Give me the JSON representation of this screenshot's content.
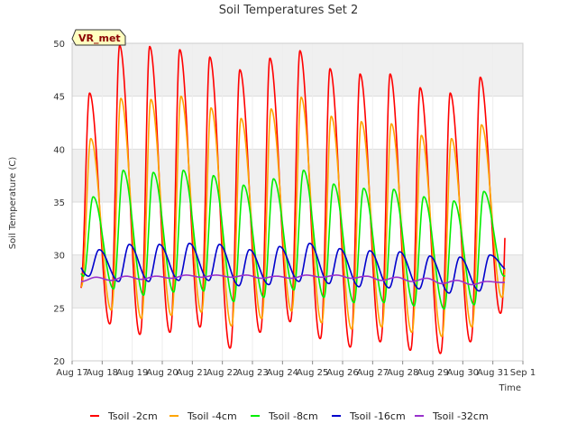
{
  "chart_data": {
    "type": "line",
    "title": "Soil Temperatures Set 2",
    "xlabel": "Time",
    "ylabel": "Soil Temperature (C)",
    "badge": "VR_met",
    "ylim": [
      20,
      50
    ],
    "yticks": [
      20,
      25,
      30,
      35,
      40,
      45,
      50
    ],
    "xlim": [
      "2023-08-17",
      "2023-09-01"
    ],
    "xticks": [
      "Aug 17",
      "Aug 18",
      "Aug 19",
      "Aug 20",
      "Aug 21",
      "Aug 22",
      "Aug 23",
      "Aug 24",
      "Aug 25",
      "Aug 26",
      "Aug 27",
      "Aug 28",
      "Aug 29",
      "Aug 30",
      "Aug 31",
      "Sep 1"
    ],
    "grid": true,
    "legend_position": "bottom",
    "daily_extremes_note_values": "daily min/max per day Aug 17 .. Aug 31",
    "series": [
      {
        "name": "Tsoil -2cm",
        "color": "#ff0000",
        "daily_min": [
          26.5,
          23.5,
          22.5,
          22.7,
          23.2,
          21.2,
          22.7,
          23.7,
          22.1,
          21.3,
          21.8,
          21.0,
          20.7,
          21.8,
          24.5
        ],
        "daily_max": [
          45.3,
          49.8,
          49.7,
          49.4,
          48.7,
          47.5,
          48.6,
          49.3,
          47.6,
          47.1,
          47.1,
          45.8,
          45.3,
          46.8,
          null
        ]
      },
      {
        "name": "Tsoil -4cm",
        "color": "#ffa500",
        "daily_min": [
          27.0,
          24.8,
          24.0,
          24.3,
          24.6,
          23.3,
          24.0,
          24.7,
          23.6,
          23.0,
          23.2,
          22.7,
          22.3,
          23.2,
          26.0
        ],
        "daily_max": [
          41.0,
          44.8,
          44.7,
          45.0,
          43.9,
          42.9,
          43.8,
          44.9,
          43.1,
          42.6,
          42.4,
          41.3,
          41.0,
          42.3,
          null
        ]
      },
      {
        "name": "Tsoil -8cm",
        "color": "#00ee00",
        "daily_min": [
          28.0,
          26.8,
          26.2,
          26.5,
          26.6,
          25.6,
          26.0,
          26.7,
          26.0,
          25.5,
          25.5,
          25.2,
          24.9,
          25.3,
          28.0
        ],
        "daily_max": [
          35.5,
          38.0,
          37.8,
          38.0,
          37.5,
          36.6,
          37.2,
          38.0,
          36.7,
          36.3,
          36.2,
          35.5,
          35.1,
          36.0,
          null
        ]
      },
      {
        "name": "Tsoil -16cm",
        "color": "#0000cc",
        "daily_min": [
          28.0,
          27.5,
          27.5,
          27.6,
          27.6,
          27.1,
          27.2,
          27.5,
          27.3,
          27.0,
          26.9,
          26.8,
          26.4,
          26.6,
          28.5
        ],
        "daily_max": [
          30.5,
          31.0,
          31.0,
          31.1,
          31.0,
          30.5,
          30.8,
          31.1,
          30.6,
          30.4,
          30.3,
          29.9,
          29.8,
          30.0,
          null
        ]
      },
      {
        "name": "Tsoil -32cm",
        "color": "#9932cc",
        "daily_min": [
          27.5,
          27.6,
          27.7,
          27.8,
          27.9,
          27.9,
          27.8,
          27.8,
          27.9,
          27.8,
          27.6,
          27.5,
          27.3,
          27.2,
          27.4
        ],
        "daily_max": [
          27.9,
          28.0,
          28.0,
          28.1,
          28.1,
          28.1,
          28.0,
          28.1,
          28.1,
          28.0,
          27.9,
          27.8,
          27.6,
          27.5,
          27.6
        ]
      }
    ]
  }
}
